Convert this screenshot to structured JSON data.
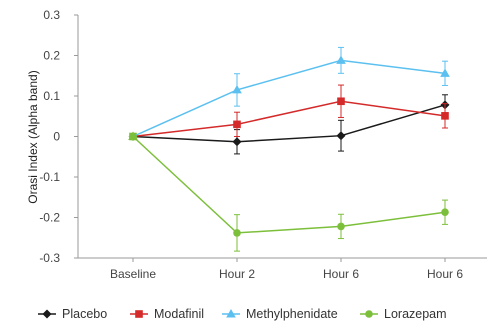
{
  "chart_data": {
    "type": "line",
    "title": "",
    "xlabel": "",
    "ylabel": "Orasi Index (Alpha band)",
    "categories": [
      "Baseline",
      "Hour 2",
      "Hour 6",
      "Hour 6"
    ],
    "ylim": [
      -0.3,
      0.3
    ],
    "yticks": [
      "0.3",
      "0.2",
      "0.1",
      "0",
      "-0.1",
      "-0.2",
      "-0.3"
    ],
    "ytick_values": [
      0.3,
      0.2,
      0.1,
      0,
      -0.1,
      -0.2,
      -0.3
    ],
    "grid": false,
    "legend_position": "bottom",
    "series": [
      {
        "name": "Placebo",
        "color": "#1a1a1a",
        "marker": "diamond",
        "values": [
          0,
          -0.013,
          0.002,
          0.078
        ],
        "error": [
          0,
          0.03,
          0.038,
          0.025
        ]
      },
      {
        "name": "Modafinil",
        "color": "#d42a2a",
        "marker": "square",
        "values": [
          0,
          0.03,
          0.087,
          0.051
        ],
        "error": [
          0,
          0.03,
          0.04,
          0.03
        ]
      },
      {
        "name": "Methylphenidate",
        "color": "#5bc0f0",
        "marker": "triangle",
        "values": [
          0,
          0.115,
          0.188,
          0.156
        ],
        "error": [
          0,
          0.04,
          0.032,
          0.03
        ]
      },
      {
        "name": "Lorazepam",
        "color": "#7cbf3a",
        "marker": "circle",
        "values": [
          0,
          -0.238,
          -0.222,
          -0.187
        ],
        "error": [
          0,
          0.045,
          0.03,
          0.03
        ]
      }
    ]
  }
}
